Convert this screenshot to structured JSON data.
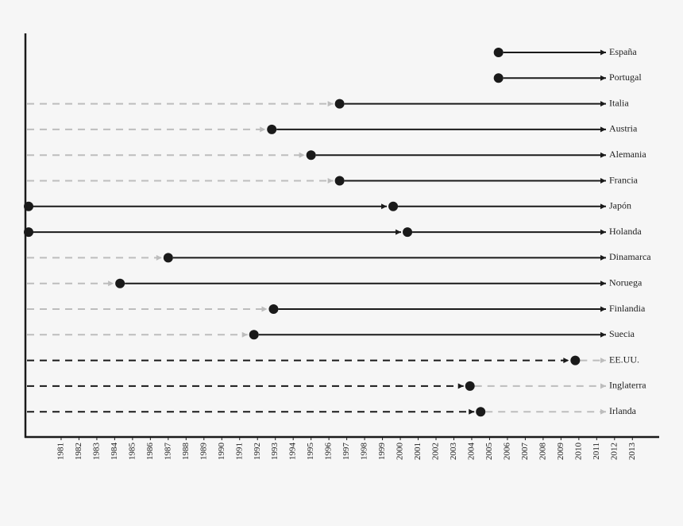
{
  "chart_data": {
    "type": "timeline",
    "categories": [
      "España",
      "Portugal",
      "Italia",
      "Austria",
      "Alemania",
      "Francia",
      "Japón",
      "Holanda",
      "Dinamarca",
      "Noruega",
      "Finlandia",
      "Suecia",
      "EE.UU.",
      "Inglaterra",
      "Irlanda"
    ],
    "values": [
      2005.5,
      2005.5,
      1996.6,
      1992.8,
      1995.0,
      1996.6,
      1999.6,
      2000.4,
      1987.0,
      1984.3,
      1992.9,
      1991.8,
      2009.8,
      2003.9,
      2004.5
    ],
    "before_style": [
      "none",
      "none",
      "dashed-gray",
      "dashed-gray",
      "dashed-gray",
      "dashed-gray",
      "solid",
      "solid",
      "dashed-gray",
      "dashed-gray",
      "dashed-gray",
      "dashed-gray",
      "dashed-black",
      "dashed-black",
      "dashed-black"
    ],
    "after_style": [
      "solid",
      "solid",
      "solid",
      "solid",
      "solid",
      "solid",
      "solid",
      "solid",
      "solid",
      "solid",
      "solid",
      "solid",
      "dashed-gray",
      "dashed-gray",
      "dashed-gray"
    ],
    "xlim": [
      1979,
      2014.5
    ],
    "xticks": [
      1981,
      1982,
      1983,
      1984,
      1985,
      1986,
      1987,
      1988,
      1989,
      1990,
      1991,
      1992,
      1993,
      1994,
      1995,
      1996,
      1997,
      1998,
      1999,
      2000,
      2001,
      2002,
      2003,
      2004,
      2005,
      2006,
      2007,
      2008,
      2009,
      2010,
      2011,
      2012,
      2013
    ],
    "color": "#1a1a1a"
  }
}
